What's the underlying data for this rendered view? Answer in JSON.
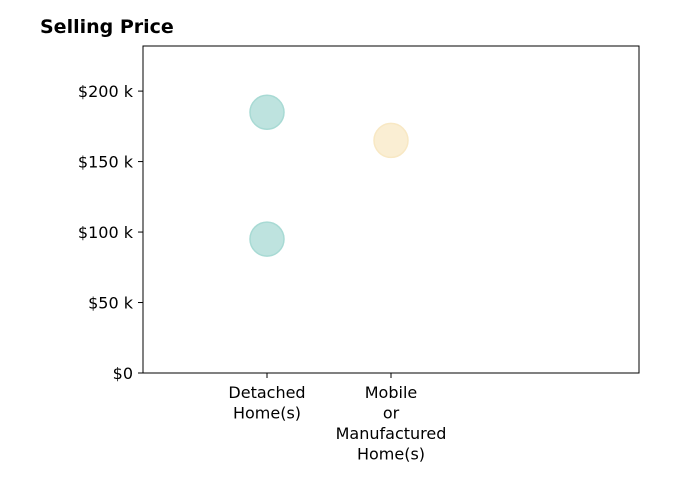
{
  "chart_data": {
    "type": "scatter",
    "title": "Selling Price",
    "xlabel": "",
    "ylabel": "",
    "categories": [
      [
        "Detached",
        "Home(s)"
      ],
      [
        "Mobile",
        "or",
        "Manufactured",
        "Home(s)"
      ]
    ],
    "y_ticks": [
      {
        "value": 0,
        "label": "$0"
      },
      {
        "value": 50000,
        "label": "$50 k"
      },
      {
        "value": 100000,
        "label": "$100 k"
      },
      {
        "value": 150000,
        "label": "$150 k"
      },
      {
        "value": 200000,
        "label": "$200 k"
      }
    ],
    "ylim": [
      0,
      232000
    ],
    "grid": false,
    "points": [
      {
        "category": 0,
        "y": 185000,
        "color": "#a8dad4"
      },
      {
        "category": 0,
        "y": 95000,
        "color": "#a8dad4"
      },
      {
        "category": 1,
        "y": 165000,
        "color": "#f8e8c4"
      }
    ]
  }
}
